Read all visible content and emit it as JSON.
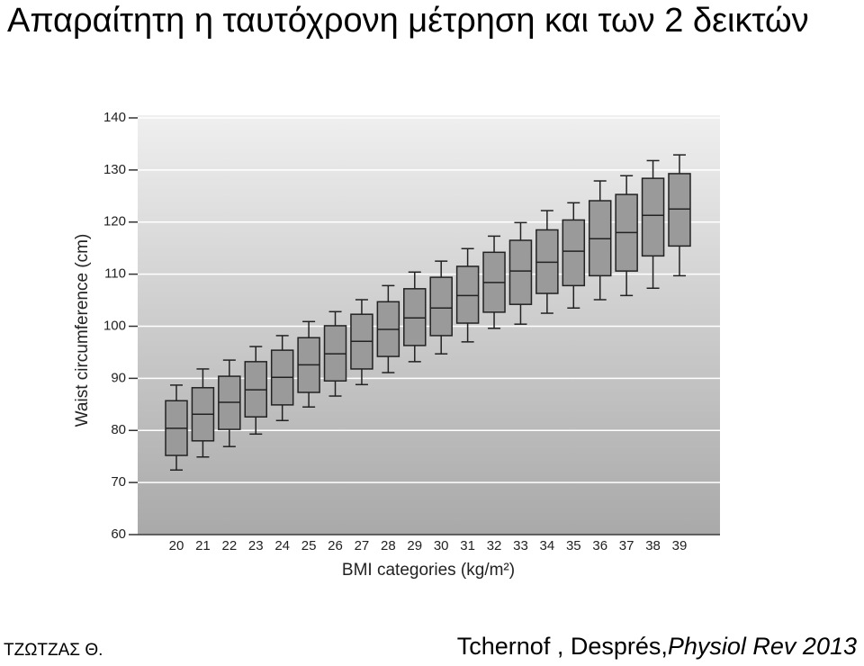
{
  "slide": {
    "title": "Απαραίτητη η ταυτόχρονη μέτρηση και των 2 δεικτών",
    "author": "ΤΖΩΤΖΑΣ Θ.",
    "citation_authors": "Tchernof , Després,",
    "citation_journal": "Physiol Rev 2013"
  },
  "chart_data": {
    "type": "box",
    "xlabel": "BMI categories (kg/m²)",
    "ylabel": "Waist circumference (cm)",
    "categories": [
      "20",
      "21",
      "22",
      "23",
      "24",
      "25",
      "26",
      "27",
      "28",
      "29",
      "30",
      "31",
      "32",
      "33",
      "34",
      "35",
      "36",
      "37",
      "38",
      "39"
    ],
    "whisker_low": [
      72.4,
      74.9,
      76.9,
      79.3,
      81.9,
      84.5,
      86.6,
      88.8,
      91.1,
      93.2,
      94.7,
      97.0,
      99.6,
      100.4,
      102.5,
      103.5,
      105.1,
      105.9,
      107.3,
      109.7
    ],
    "q1": [
      75.2,
      78.0,
      80.2,
      82.6,
      84.9,
      87.3,
      89.5,
      91.8,
      94.2,
      96.3,
      98.2,
      100.6,
      102.7,
      104.2,
      106.3,
      107.8,
      109.7,
      110.6,
      113.5,
      115.4
    ],
    "median": [
      80.4,
      83.1,
      85.4,
      87.8,
      90.2,
      92.6,
      94.7,
      97.1,
      99.4,
      101.6,
      103.5,
      105.9,
      108.4,
      110.6,
      112.3,
      114.4,
      116.8,
      118.0,
      121.3,
      122.5
    ],
    "q3": [
      85.7,
      88.2,
      90.4,
      93.2,
      95.4,
      97.8,
      100.1,
      102.3,
      104.7,
      107.2,
      109.4,
      111.5,
      114.2,
      116.5,
      118.5,
      120.4,
      124.1,
      125.3,
      128.4,
      129.3
    ],
    "whisker_high": [
      88.7,
      91.8,
      93.5,
      96.1,
      98.2,
      100.9,
      102.8,
      105.1,
      107.8,
      110.4,
      112.5,
      114.9,
      117.3,
      119.9,
      122.2,
      123.7,
      127.9,
      128.9,
      131.8,
      132.9
    ],
    "color": "#9a9a9a",
    "ylim": [
      60,
      140
    ],
    "yticks": [
      60,
      70,
      80,
      90,
      100,
      110,
      120,
      130,
      140
    ],
    "grid": true
  }
}
